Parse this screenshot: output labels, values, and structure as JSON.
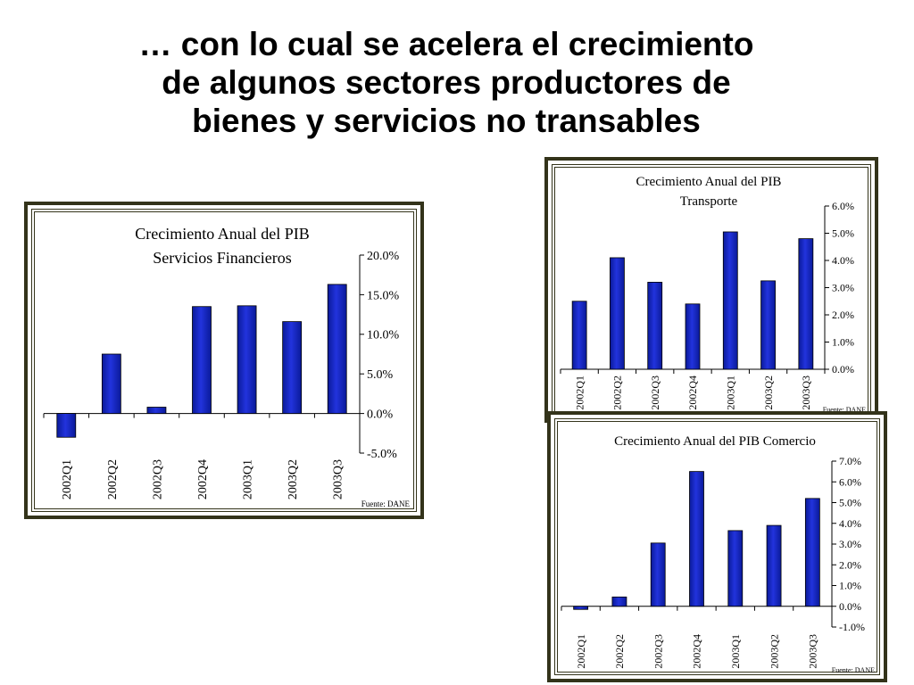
{
  "slide": {
    "title_lines": [
      "… con lo cual se acelera el crecimiento",
      "de algunos sectores productores de",
      "bienes y servicios no transables"
    ]
  },
  "chart_data": [
    {
      "id": "financieros",
      "type": "bar",
      "title_lines": [
        "Crecimiento Anual del PIB",
        "Servicios Financieros"
      ],
      "categories": [
        "2002Q1",
        "2002Q2",
        "2002Q3",
        "2002Q4",
        "2003Q1",
        "2003Q2",
        "2003Q3"
      ],
      "values": [
        -3.0,
        7.5,
        0.8,
        13.5,
        13.6,
        11.6,
        16.3
      ],
      "ylim": [
        -5,
        20
      ],
      "yticks": [
        -5,
        0,
        5,
        10,
        15,
        20
      ],
      "tick_decimals": 1,
      "source": "Fuente: DANE",
      "bar_color": "#2233dd",
      "legend": "none",
      "grid": false
    },
    {
      "id": "transporte",
      "type": "bar",
      "title_lines": [
        "Crecimiento Anual del PIB",
        "Transporte"
      ],
      "categories": [
        "2002Q1",
        "2002Q2",
        "2002Q3",
        "2002Q4",
        "2003Q1",
        "2003Q2",
        "2003Q3"
      ],
      "values": [
        2.5,
        4.1,
        3.2,
        2.4,
        5.05,
        3.25,
        4.8
      ],
      "ylim": [
        0,
        6
      ],
      "yticks": [
        0,
        1,
        2,
        3,
        4,
        5,
        6
      ],
      "tick_decimals": 1,
      "source": "Fuente: DANE",
      "bar_color": "#2233dd",
      "legend": "none",
      "grid": false
    },
    {
      "id": "comercio",
      "type": "bar",
      "title_lines": [
        "Crecimiento Anual del PIB Comercio"
      ],
      "categories": [
        "2002Q1",
        "2002Q2",
        "2002Q3",
        "2002Q4",
        "2003Q1",
        "2003Q2",
        "2003Q3"
      ],
      "values": [
        -0.15,
        0.45,
        3.05,
        6.5,
        3.65,
        3.9,
        5.2
      ],
      "ylim": [
        -1,
        7
      ],
      "yticks": [
        -1,
        0,
        1,
        2,
        3,
        4,
        5,
        6,
        7
      ],
      "tick_decimals": 1,
      "source": "Fuente: DANE",
      "bar_color": "#2233dd",
      "legend": "none",
      "grid": false
    }
  ]
}
